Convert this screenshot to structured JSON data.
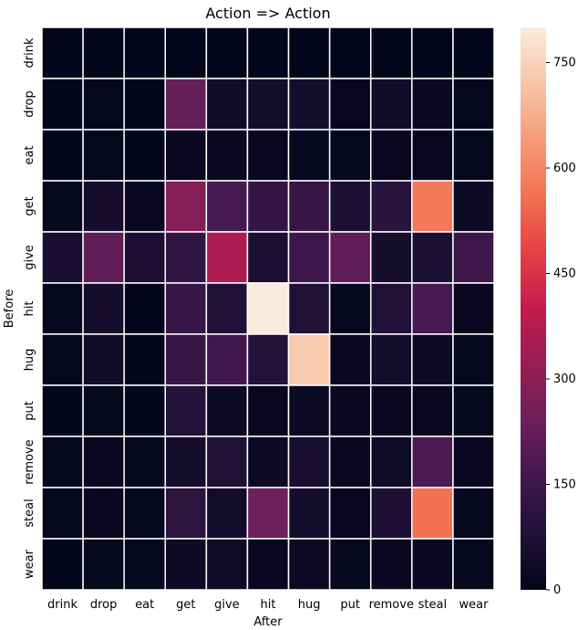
{
  "chart_data": {
    "type": "heatmap",
    "title": "Action => Action",
    "xlabel": "After",
    "ylabel": "Before",
    "x_categories": [
      "drink",
      "drop",
      "eat",
      "get",
      "give",
      "hit",
      "hug",
      "put",
      "remove",
      "steal",
      "wear"
    ],
    "y_categories": [
      "drink",
      "drop",
      "eat",
      "get",
      "give",
      "hit",
      "hug",
      "put",
      "remove",
      "steal",
      "wear"
    ],
    "values": [
      [
        2,
        3,
        2,
        3,
        2,
        3,
        3,
        2,
        3,
        3,
        2
      ],
      [
        5,
        10,
        5,
        225,
        40,
        50,
        50,
        15,
        40,
        20,
        10
      ],
      [
        5,
        10,
        5,
        20,
        20,
        15,
        10,
        10,
        15,
        15,
        10
      ],
      [
        10,
        55,
        15,
        285,
        170,
        130,
        140,
        70,
        100,
        575,
        30
      ],
      [
        60,
        220,
        75,
        120,
        360,
        65,
        150,
        220,
        50,
        70,
        150
      ],
      [
        10,
        55,
        5,
        140,
        85,
        800,
        80,
        10,
        85,
        170,
        20
      ],
      [
        10,
        40,
        5,
        140,
        160,
        90,
        730,
        20,
        45,
        30,
        10
      ],
      [
        5,
        10,
        5,
        90,
        30,
        20,
        30,
        20,
        20,
        15,
        10
      ],
      [
        10,
        20,
        10,
        50,
        80,
        30,
        60,
        20,
        35,
        185,
        20
      ],
      [
        10,
        20,
        10,
        110,
        45,
        240,
        50,
        15,
        75,
        560,
        10
      ],
      [
        5,
        10,
        10,
        30,
        35,
        15,
        25,
        10,
        20,
        20,
        10
      ]
    ],
    "colorbar": {
      "min": 0,
      "max": 800,
      "ticks": [
        0,
        150,
        300,
        450,
        600,
        750
      ]
    },
    "colormap": "rocket",
    "grid": false
  }
}
